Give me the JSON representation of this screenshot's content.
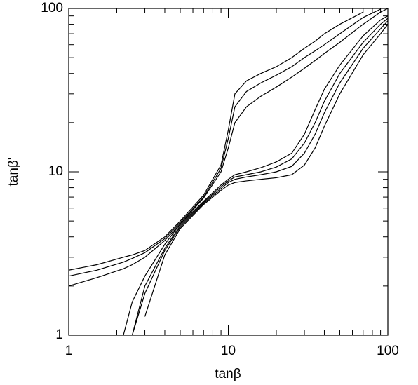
{
  "chart_data": {
    "type": "line",
    "xlabel": "tanβ",
    "ylabel": "tanβ'",
    "log_x": true,
    "log_y": true,
    "xlim": [
      1,
      100
    ],
    "ylim": [
      1,
      100
    ],
    "xticks": [
      1,
      10,
      100
    ],
    "yticks": [
      1,
      10,
      100
    ],
    "xminorticks": [
      2,
      3,
      4,
      5,
      6,
      7,
      8,
      9,
      20,
      30,
      40,
      50,
      60,
      70,
      80,
      90
    ],
    "yminorticks": [
      2,
      3,
      4,
      5,
      6,
      7,
      8,
      9,
      20,
      30,
      40,
      50,
      60,
      70,
      80,
      90
    ],
    "x": [
      1,
      1.5,
      2.2,
      2.5,
      3,
      4,
      5,
      7,
      9,
      10,
      11,
      13,
      16,
      20,
      25,
      30,
      35,
      40,
      50,
      70,
      90,
      100
    ],
    "series": [
      {
        "color": "#000000",
        "values": [
          2.5,
          2.7,
          3.0,
          3.1,
          3.3,
          4.0,
          5.0,
          7.2,
          11,
          18,
          30,
          36,
          40,
          44,
          50,
          57,
          63,
          70,
          80,
          95,
          null,
          null
        ]
      },
      {
        "color": "#000000",
        "values": [
          2.3,
          2.5,
          2.8,
          2.95,
          3.2,
          3.9,
          4.9,
          7.0,
          10.5,
          16,
          25,
          31,
          35,
          39,
          44,
          50,
          55,
          60,
          70,
          88,
          99,
          null
        ]
      },
      {
        "color": "#000000",
        "values": [
          2.0,
          2.25,
          2.55,
          2.7,
          3.0,
          3.8,
          4.8,
          6.9,
          10,
          14,
          20,
          25,
          29,
          33,
          38,
          43,
          48,
          53,
          62,
          80,
          95,
          100
        ]
      },
      {
        "color": "#000000",
        "values": [
          null,
          null,
          1.0,
          1.6,
          2.3,
          3.6,
          4.8,
          6.6,
          8.3,
          9.0,
          9.6,
          10,
          10.6,
          11.5,
          13,
          17,
          24,
          32,
          45,
          68,
          85,
          90
        ]
      },
      {
        "color": "#000000",
        "values": [
          null,
          null,
          null,
          1.0,
          2.0,
          3.4,
          4.7,
          6.5,
          8.1,
          8.8,
          9.3,
          9.6,
          10,
          10.7,
          12,
          15,
          20,
          27,
          40,
          62,
          80,
          87
        ]
      },
      {
        "color": "#000000",
        "values": [
          null,
          null,
          null,
          1.0,
          1.8,
          3.3,
          4.6,
          6.4,
          7.9,
          8.6,
          9.0,
          9.3,
          9.6,
          10,
          10.8,
          13,
          17,
          23,
          35,
          57,
          75,
          84
        ]
      },
      {
        "color": "#000000",
        "values": [
          null,
          null,
          null,
          null,
          1.3,
          3.1,
          4.5,
          6.3,
          7.7,
          8.3,
          8.6,
          8.8,
          9.0,
          9.2,
          9.6,
          11,
          14,
          19,
          30,
          52,
          70,
          80
        ]
      }
    ]
  }
}
